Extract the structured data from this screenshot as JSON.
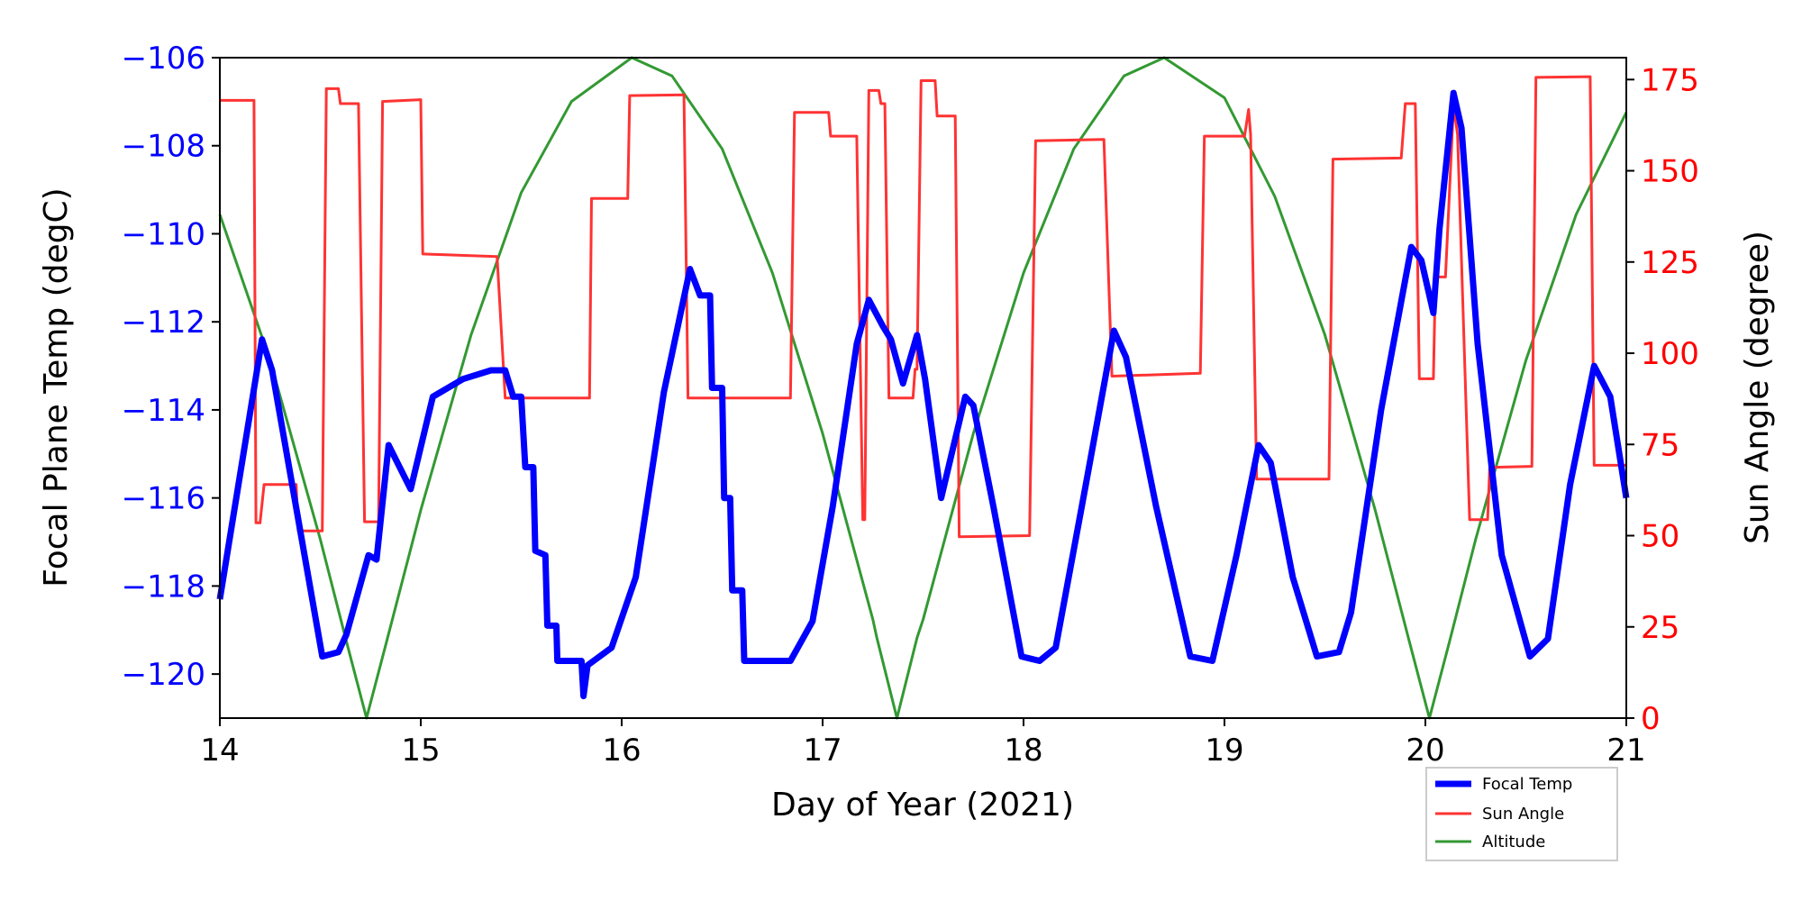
{
  "chart_data": {
    "type": "line",
    "xlabel": "Day of Year (2021)",
    "ylabel_left": "Focal Plane Temp (degC)",
    "ylabel_right": "Sun Angle (degree)",
    "xlim": [
      14,
      21
    ],
    "ylim_left": [
      -121,
      -106
    ],
    "ylim_right": [
      0,
      181
    ],
    "xticks": [
      14,
      15,
      16,
      17,
      18,
      19,
      20,
      21
    ],
    "yticks_left": [
      -106,
      -108,
      -110,
      -112,
      -114,
      -116,
      -118,
      -120
    ],
    "yticks_right": [
      0,
      25,
      50,
      75,
      100,
      125,
      150,
      175
    ],
    "grid": false,
    "legend_position": "bottom-right, below plot",
    "colors": {
      "focal": "#0000ff",
      "sun": "#ff3333",
      "alt": "#339933",
      "left_axis": "#0000ff",
      "right_axis": "#ff0000"
    },
    "series": [
      {
        "name": "Focal Temp",
        "axis": "left",
        "points": [
          [
            14.0,
            -118.3
          ],
          [
            14.21,
            -112.4
          ],
          [
            14.26,
            -113.1
          ],
          [
            14.51,
            -119.6
          ],
          [
            14.59,
            -119.5
          ],
          [
            14.63,
            -119.1
          ],
          [
            14.74,
            -117.3
          ],
          [
            14.78,
            -117.4
          ],
          [
            14.84,
            -114.8
          ],
          [
            14.95,
            -115.8
          ],
          [
            15.06,
            -113.7
          ],
          [
            15.21,
            -113.3
          ],
          [
            15.35,
            -113.1
          ],
          [
            15.42,
            -113.1
          ],
          [
            15.46,
            -113.7
          ],
          [
            15.5,
            -113.7
          ],
          [
            15.52,
            -115.3
          ],
          [
            15.56,
            -115.3
          ],
          [
            15.57,
            -117.2
          ],
          [
            15.62,
            -117.3
          ],
          [
            15.63,
            -118.9
          ],
          [
            15.675,
            -118.9
          ],
          [
            15.68,
            -119.7
          ],
          [
            15.8,
            -119.7
          ],
          [
            15.81,
            -120.5
          ],
          [
            15.83,
            -119.8
          ],
          [
            15.95,
            -119.4
          ],
          [
            16.07,
            -117.8
          ],
          [
            16.21,
            -113.6
          ],
          [
            16.34,
            -110.8
          ],
          [
            16.39,
            -111.4
          ],
          [
            16.44,
            -111.4
          ],
          [
            16.45,
            -113.5
          ],
          [
            16.5,
            -113.5
          ],
          [
            16.51,
            -116.0
          ],
          [
            16.54,
            -116.0
          ],
          [
            16.55,
            -118.1
          ],
          [
            16.6,
            -118.1
          ],
          [
            16.61,
            -119.7
          ],
          [
            16.84,
            -119.7
          ],
          [
            16.95,
            -118.8
          ],
          [
            17.05,
            -116.2
          ],
          [
            17.17,
            -112.5
          ],
          [
            17.23,
            -111.5
          ],
          [
            17.3,
            -112.1
          ],
          [
            17.34,
            -112.4
          ],
          [
            17.4,
            -113.4
          ],
          [
            17.47,
            -112.3
          ],
          [
            17.51,
            -113.3
          ],
          [
            17.59,
            -116.0
          ],
          [
            17.71,
            -113.7
          ],
          [
            17.75,
            -113.9
          ],
          [
            17.85,
            -116.2
          ],
          [
            17.99,
            -119.6
          ],
          [
            18.08,
            -119.7
          ],
          [
            18.16,
            -119.4
          ],
          [
            18.31,
            -115.7
          ],
          [
            18.45,
            -112.2
          ],
          [
            18.51,
            -112.8
          ],
          [
            18.66,
            -116.2
          ],
          [
            18.83,
            -119.6
          ],
          [
            18.94,
            -119.7
          ],
          [
            19.06,
            -117.3
          ],
          [
            19.17,
            -114.8
          ],
          [
            19.23,
            -115.2
          ],
          [
            19.34,
            -117.8
          ],
          [
            19.46,
            -119.6
          ],
          [
            19.57,
            -119.5
          ],
          [
            19.63,
            -118.6
          ],
          [
            19.78,
            -114.0
          ],
          [
            19.93,
            -110.3
          ],
          [
            19.98,
            -110.6
          ],
          [
            20.04,
            -111.8
          ],
          [
            20.07,
            -109.9
          ],
          [
            20.14,
            -106.8
          ],
          [
            20.18,
            -107.6
          ],
          [
            20.26,
            -112.5
          ],
          [
            20.38,
            -117.3
          ],
          [
            20.52,
            -119.6
          ],
          [
            20.61,
            -119.2
          ],
          [
            20.72,
            -115.7
          ],
          [
            20.84,
            -113.0
          ],
          [
            20.92,
            -113.7
          ],
          [
            21.0,
            -116.0
          ]
        ]
      },
      {
        "name": "Sun Angle",
        "axis": "right",
        "points": [
          [
            14.0,
            169.3
          ],
          [
            14.17,
            169.3
          ],
          [
            14.18,
            53.5
          ],
          [
            14.2,
            53.5
          ],
          [
            14.22,
            64
          ],
          [
            14.38,
            64
          ],
          [
            14.39,
            51.3
          ],
          [
            14.51,
            51.3
          ],
          [
            14.53,
            172.5
          ],
          [
            14.59,
            172.5
          ],
          [
            14.6,
            168.4
          ],
          [
            14.69,
            168.4
          ],
          [
            14.72,
            53.8
          ],
          [
            14.79,
            53.8
          ],
          [
            14.81,
            169
          ],
          [
            15.0,
            169.5
          ],
          [
            15.01,
            127.2
          ],
          [
            15.38,
            126.5
          ],
          [
            15.42,
            87.7
          ],
          [
            15.84,
            87.7
          ],
          [
            15.85,
            142.4
          ],
          [
            16.03,
            142.4
          ],
          [
            16.04,
            170.6
          ],
          [
            16.31,
            170.8
          ],
          [
            16.33,
            87.7
          ],
          [
            16.84,
            87.7
          ],
          [
            16.86,
            166
          ],
          [
            17.03,
            166
          ],
          [
            17.04,
            159.5
          ],
          [
            17.17,
            159.5
          ],
          [
            17.2,
            54.4
          ],
          [
            17.21,
            54.4
          ],
          [
            17.23,
            172
          ],
          [
            17.28,
            172
          ],
          [
            17.29,
            168.4
          ],
          [
            17.31,
            168.4
          ],
          [
            17.33,
            87.7
          ],
          [
            17.45,
            87.7
          ],
          [
            17.46,
            95.6
          ],
          [
            17.47,
            95.6
          ],
          [
            17.49,
            174.7
          ],
          [
            17.56,
            174.7
          ],
          [
            17.57,
            165
          ],
          [
            17.66,
            165
          ],
          [
            17.68,
            49.7
          ],
          [
            18.03,
            50
          ],
          [
            18.06,
            158.2
          ],
          [
            18.4,
            158.6
          ],
          [
            18.44,
            93.7
          ],
          [
            18.88,
            94.5
          ],
          [
            18.9,
            159.5
          ],
          [
            19.1,
            159.5
          ],
          [
            19.12,
            166.8
          ],
          [
            19.13,
            160
          ],
          [
            19.16,
            65.5
          ],
          [
            19.52,
            65.5
          ],
          [
            19.54,
            153.2
          ],
          [
            19.88,
            153.5
          ],
          [
            19.9,
            168.4
          ],
          [
            19.95,
            168.4
          ],
          [
            19.97,
            93
          ],
          [
            20.04,
            93
          ],
          [
            20.05,
            120.9
          ],
          [
            20.1,
            120.9
          ],
          [
            20.14,
            167.7
          ],
          [
            20.16,
            160
          ],
          [
            20.22,
            54.4
          ],
          [
            20.31,
            54.4
          ],
          [
            20.32,
            68.7
          ],
          [
            20.53,
            69
          ],
          [
            20.55,
            175.6
          ],
          [
            20.82,
            175.8
          ],
          [
            20.84,
            69.3
          ],
          [
            21.0,
            69.3
          ]
        ]
      },
      {
        "name": "Altitude",
        "axis": "right",
        "points": [
          [
            14.0,
            138
          ],
          [
            14.25,
            98
          ],
          [
            14.5,
            49
          ],
          [
            14.63,
            21
          ],
          [
            14.73,
            0
          ],
          [
            14.83,
            21
          ],
          [
            15.0,
            57
          ],
          [
            15.25,
            105
          ],
          [
            15.5,
            144
          ],
          [
            15.75,
            169
          ],
          [
            16.05,
            181
          ],
          [
            16.25,
            176
          ],
          [
            16.5,
            156
          ],
          [
            16.75,
            122
          ],
          [
            17.0,
            78
          ],
          [
            17.25,
            27
          ],
          [
            17.27,
            22
          ],
          [
            17.37,
            0
          ],
          [
            17.47,
            22
          ],
          [
            17.5,
            27
          ],
          [
            17.75,
            78
          ],
          [
            18.0,
            122
          ],
          [
            18.25,
            156
          ],
          [
            18.5,
            176
          ],
          [
            18.7,
            181
          ],
          [
            19.0,
            170
          ],
          [
            19.25,
            143
          ],
          [
            19.5,
            105
          ],
          [
            19.75,
            57
          ],
          [
            19.92,
            21
          ],
          [
            20.02,
            0
          ],
          [
            20.12,
            21
          ],
          [
            20.25,
            49
          ],
          [
            20.5,
            98
          ],
          [
            20.75,
            138
          ],
          [
            21.0,
            166
          ]
        ]
      }
    ]
  }
}
